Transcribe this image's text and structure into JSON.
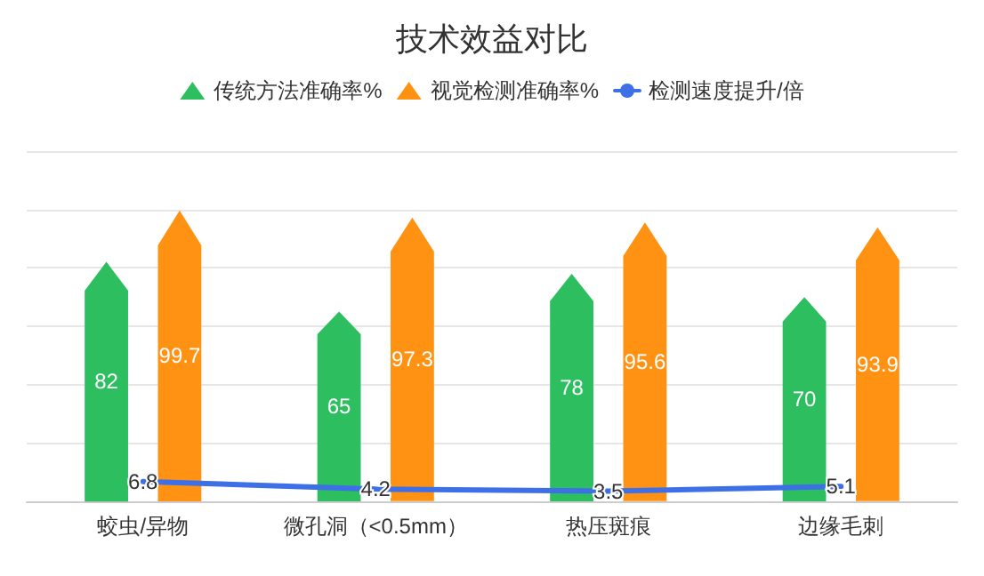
{
  "chart_data": {
    "type": "bar",
    "title": "技术效益对比",
    "categories": [
      "蛟虫/异物",
      "微孔洞（<0.5mm）",
      "热压斑痕",
      "边缘毛刺"
    ],
    "series": [
      {
        "name": "传统方法准确率%",
        "color": "#2dbe60",
        "values": [
          82,
          65,
          78,
          70
        ]
      },
      {
        "name": "视觉检测准确率%",
        "color": "#ff9213",
        "values": [
          99.7,
          97.3,
          95.6,
          93.9
        ]
      },
      {
        "name": "检测速度提升/倍",
        "type": "line",
        "color": "#3d6fe6",
        "values": [
          6.8,
          4.2,
          3.5,
          5.1
        ]
      }
    ],
    "ylim": [
      0,
      120
    ],
    "yticks": [
      0,
      20,
      40,
      60,
      80,
      100,
      120
    ],
    "tick_labels": "x",
    "grid": "y",
    "legend": "top",
    "data_labels": true,
    "marker": "none"
  }
}
